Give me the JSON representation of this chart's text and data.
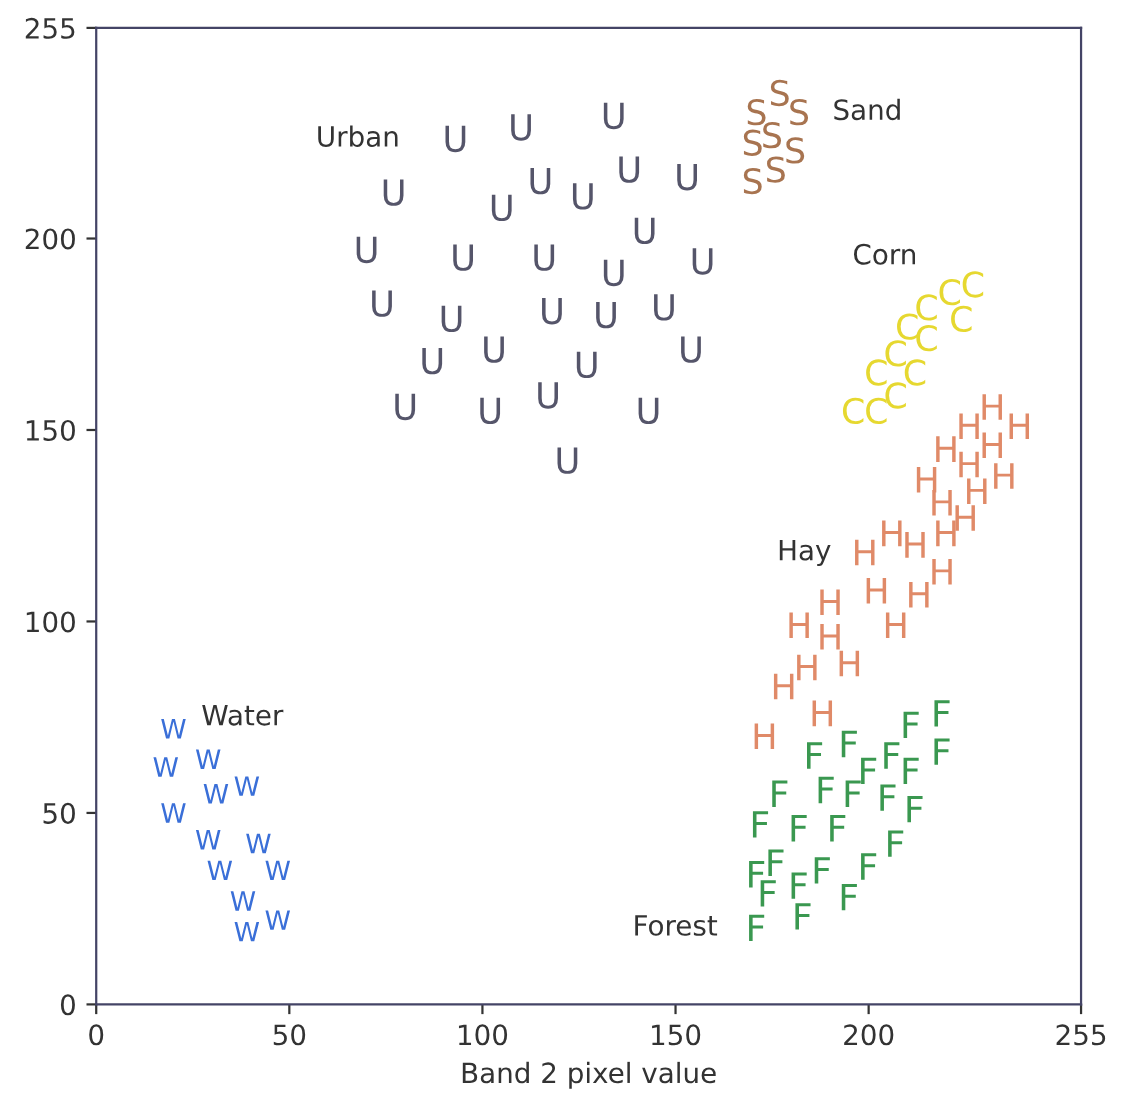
{
  "chart_data": {
    "type": "scatter",
    "xlabel": "Band 2 pixel value",
    "xlim": [
      0,
      255
    ],
    "ylim": [
      0,
      255
    ],
    "xticks": [
      0,
      50,
      100,
      150,
      200,
      255
    ],
    "yticks": [
      0,
      50,
      100,
      150,
      200,
      255
    ],
    "grid": false,
    "legend": false,
    "series": [
      {
        "name": "Urban",
        "color": "#55556a",
        "x": [
          93,
          110,
          134,
          77,
          105,
          115,
          126,
          138,
          153,
          70,
          95,
          116,
          134,
          142,
          157,
          74,
          92,
          118,
          132,
          147,
          87,
          103,
          127,
          154,
          80,
          102,
          117,
          143,
          122
        ],
        "values": [
          226,
          229,
          232,
          212,
          208,
          215,
          211,
          218,
          216,
          197,
          195,
          195,
          191,
          202,
          194,
          183,
          179,
          181,
          180,
          182,
          168,
          171,
          167,
          171,
          156,
          155,
          159,
          155,
          142
        ]
      },
      {
        "name": "Sand",
        "color": "#a87450",
        "x": [
          171,
          177,
          182,
          170,
          175,
          181,
          170,
          176
        ],
        "values": [
          233,
          238,
          233,
          225,
          227,
          223,
          215,
          218
        ]
      },
      {
        "name": "Corn",
        "color": "#e6d830",
        "x": [
          196,
          202,
          207,
          202,
          207,
          212,
          210,
          215,
          215,
          221,
          224,
          227
        ],
        "values": [
          155,
          155,
          159,
          165,
          170,
          165,
          177,
          174,
          182,
          186,
          179,
          188
        ]
      },
      {
        "name": "Hay",
        "color": "#e08a68",
        "x": [
          232,
          226,
          239,
          220,
          232,
          226,
          215,
          235,
          228,
          219,
          225,
          206,
          212,
          220,
          199,
          219,
          202,
          213,
          190,
          182,
          207,
          190,
          184,
          195,
          178,
          188,
          173
        ],
        "values": [
          156,
          151,
          151,
          145,
          146,
          141,
          137,
          138,
          134,
          131,
          127,
          123,
          120,
          123,
          118,
          113,
          108,
          107,
          105,
          99,
          99,
          96,
          88,
          89,
          83,
          76,
          70
        ]
      },
      {
        "name": "Forest",
        "color": "#3a9850",
        "x": [
          219,
          211,
          195,
          186,
          206,
          219,
          200,
          211,
          177,
          189,
          196,
          205,
          212,
          172,
          182,
          192,
          207,
          171,
          176,
          188,
          200,
          174,
          182,
          195,
          183,
          171
        ],
        "values": [
          76,
          73,
          68,
          65,
          65,
          66,
          61,
          61,
          55,
          56,
          55,
          54,
          51,
          47,
          46,
          46,
          42,
          34,
          37,
          35,
          36,
          29,
          31,
          28,
          23,
          20
        ]
      },
      {
        "name": "Water",
        "color": "#3a6fd8",
        "x": [
          20,
          18,
          29,
          31,
          39,
          20,
          29,
          42,
          32,
          47,
          38,
          47,
          39
        ],
        "values": [
          72,
          62,
          64,
          55,
          57,
          50,
          43,
          42,
          35,
          35,
          27,
          22,
          19
        ]
      }
    ]
  }
}
